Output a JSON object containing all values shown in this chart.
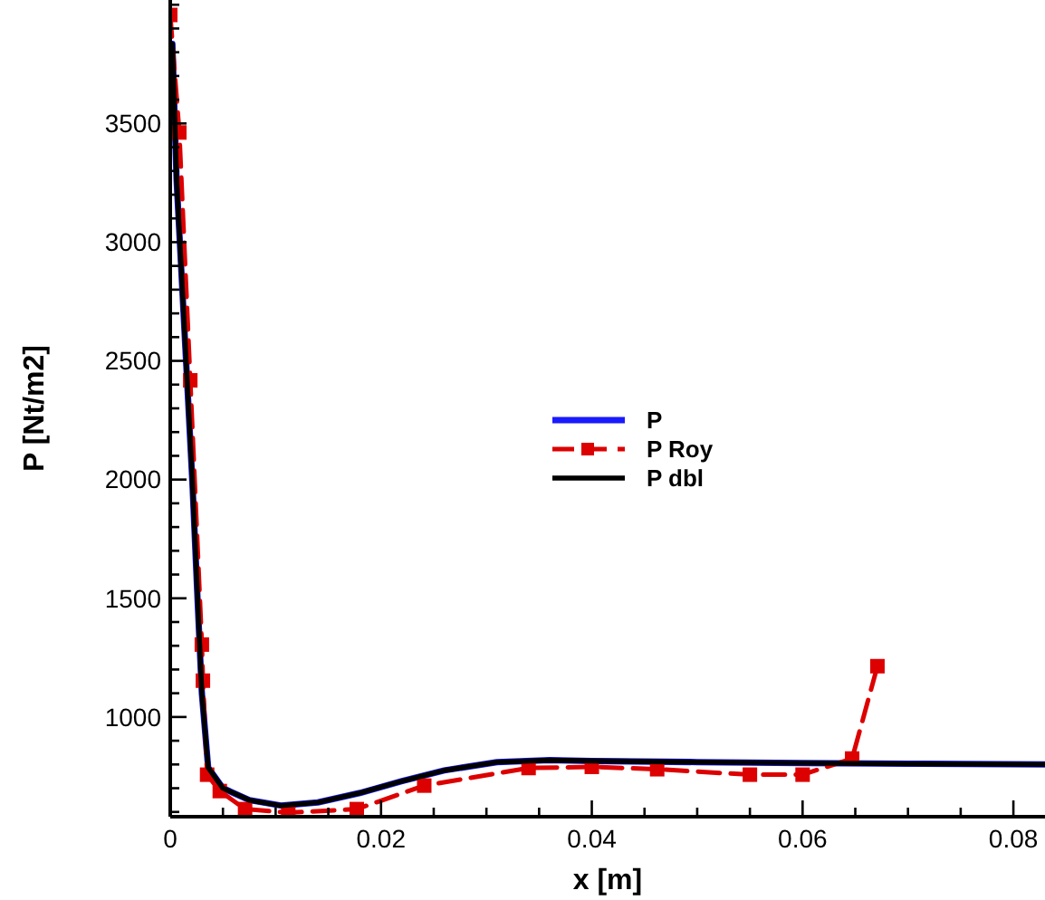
{
  "chart_data": {
    "type": "line",
    "xlabel": "x [m]",
    "ylabel": "P [Nt/m2]",
    "xlim": [
      0,
      0.083
    ],
    "ylim": [
      580,
      4020
    ],
    "xticks": [
      0,
      {
        "value": 0.005,
        "label": null
      },
      {
        "value": 0.01,
        "label": null
      },
      {
        "value": 0.015,
        "label": null
      },
      0.02,
      {
        "value": 0.025,
        "label": null
      },
      {
        "value": 0.03,
        "label": null
      },
      {
        "value": 0.035,
        "label": null
      },
      0.04,
      {
        "value": 0.045,
        "label": null
      },
      {
        "value": 0.05,
        "label": null
      },
      {
        "value": 0.055,
        "label": null
      },
      0.06,
      {
        "value": 0.065,
        "label": null
      },
      {
        "value": 0.07,
        "label": null
      },
      {
        "value": 0.075,
        "label": null
      },
      0.08
    ],
    "yticks": [
      {
        "value": 600,
        "label": null
      },
      {
        "value": 700,
        "label": null
      },
      {
        "value": 800,
        "label": null
      },
      {
        "value": 900,
        "label": null
      },
      1000,
      {
        "value": 1100,
        "label": null
      },
      {
        "value": 1200,
        "label": null
      },
      {
        "value": 1300,
        "label": null
      },
      {
        "value": 1400,
        "label": null
      },
      1500,
      {
        "value": 1600,
        "label": null
      },
      {
        "value": 1700,
        "label": null
      },
      {
        "value": 1800,
        "label": null
      },
      {
        "value": 1900,
        "label": null
      },
      2000,
      {
        "value": 2100,
        "label": null
      },
      {
        "value": 2200,
        "label": null
      },
      {
        "value": 2300,
        "label": null
      },
      {
        "value": 2400,
        "label": null
      },
      2500,
      {
        "value": 2600,
        "label": null
      },
      {
        "value": 2700,
        "label": null
      },
      {
        "value": 2800,
        "label": null
      },
      {
        "value": 2900,
        "label": null
      },
      3000,
      {
        "value": 3100,
        "label": null
      },
      {
        "value": 3200,
        "label": null
      },
      {
        "value": 3300,
        "label": null
      },
      {
        "value": 3400,
        "label": null
      },
      3500,
      {
        "value": 3600,
        "label": null
      },
      {
        "value": 3700,
        "label": null
      },
      {
        "value": 3800,
        "label": null
      },
      {
        "value": 3900,
        "label": null
      },
      {
        "value": 4000,
        "label": null
      }
    ],
    "grid": false,
    "legend": "right",
    "series": [
      {
        "name": "P",
        "color": "#1a1aff",
        "marker": "none",
        "line_style": "solid",
        "x": [
          0.0002,
          0.0006,
          0.0015,
          0.0021,
          0.0026,
          0.003,
          0.0036,
          0.005,
          0.0075,
          0.0105,
          0.014,
          0.018,
          0.022,
          0.026,
          0.031,
          0.036,
          0.04,
          0.05,
          0.06,
          0.07,
          0.083
        ],
        "values": [
          3835,
          3264,
          2502,
          1991,
          1488,
          1100,
          787,
          700,
          650,
          627,
          640,
          680,
          730,
          775,
          810,
          818,
          815,
          810,
          806,
          803,
          800
        ]
      },
      {
        "name": "P Roy",
        "color": "#dd0000",
        "marker": "square",
        "line_style": "dashed",
        "x": [
          0,
          0.00086,
          0.0019,
          0.003,
          0.0031,
          0.0035,
          0.0047,
          0.0071,
          0.0112,
          0.0177,
          0.0241,
          0.034,
          0.04,
          0.0462,
          0.055,
          0.06,
          0.0647,
          0.0671
        ],
        "values": [
          3957,
          3462,
          2418,
          1305,
          1153,
          757,
          688,
          612,
          597,
          612,
          711,
          785,
          790,
          780,
          757,
          757,
          825,
          1214
        ]
      },
      {
        "name": "P dbl",
        "color": "#000000",
        "marker": "none",
        "line_style": "solid",
        "x": [
          0.0002,
          0.0006,
          0.0015,
          0.0021,
          0.0026,
          0.003,
          0.0036,
          0.005,
          0.0075,
          0.0105,
          0.014,
          0.018,
          0.022,
          0.026,
          0.031,
          0.036,
          0.04,
          0.05,
          0.06,
          0.07,
          0.083
        ],
        "values": [
          3835,
          3264,
          2502,
          1991,
          1488,
          1100,
          787,
          700,
          650,
          627,
          640,
          680,
          730,
          775,
          810,
          818,
          815,
          810,
          806,
          803,
          800
        ]
      }
    ]
  }
}
